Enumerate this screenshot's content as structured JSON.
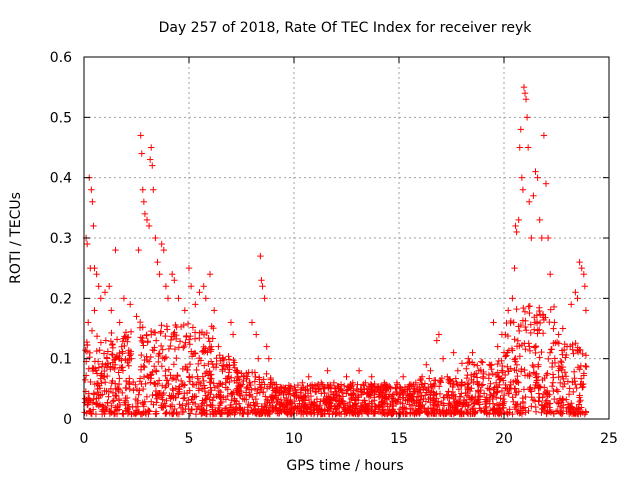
{
  "chart_data": {
    "type": "scatter",
    "title": "Day 257 of 2018, Rate Of TEC Index for receiver reyk",
    "xlabel": "GPS time / hours",
    "ylabel": "ROTI / TECUs",
    "xlim": [
      0,
      25
    ],
    "ylim": [
      0,
      0.6
    ],
    "xticks": [
      "0",
      "5",
      "10",
      "15",
      "20",
      "25"
    ],
    "yticks": [
      "0",
      "0.1",
      "0.2",
      "0.3",
      "0.4",
      "0.5",
      "0.6"
    ],
    "grid": true,
    "marker": "plus",
    "color": "#ff0000",
    "series": [
      {
        "name": "reyk",
        "points": [
          [
            0.1,
            0.3
          ],
          [
            0.15,
            0.29
          ],
          [
            0.25,
            0.4
          ],
          [
            0.35,
            0.38
          ],
          [
            0.4,
            0.36
          ],
          [
            0.45,
            0.32
          ],
          [
            0.3,
            0.25
          ],
          [
            0.5,
            0.25
          ],
          [
            0.6,
            0.24
          ],
          [
            0.7,
            0.22
          ],
          [
            0.2,
            0.16
          ],
          [
            0.5,
            0.18
          ],
          [
            0.8,
            0.2
          ],
          [
            1.0,
            0.21
          ],
          [
            1.2,
            0.22
          ],
          [
            1.5,
            0.28
          ],
          [
            1.3,
            0.18
          ],
          [
            1.7,
            0.16
          ],
          [
            1.9,
            0.2
          ],
          [
            2.2,
            0.19
          ],
          [
            2.5,
            0.17
          ],
          [
            2.6,
            0.28
          ],
          [
            2.7,
            0.47
          ],
          [
            2.75,
            0.44
          ],
          [
            2.8,
            0.38
          ],
          [
            2.85,
            0.36
          ],
          [
            2.9,
            0.34
          ],
          [
            3.0,
            0.33
          ],
          [
            3.1,
            0.32
          ],
          [
            3.15,
            0.43
          ],
          [
            3.2,
            0.45
          ],
          [
            3.25,
            0.42
          ],
          [
            3.3,
            0.38
          ],
          [
            3.4,
            0.3
          ],
          [
            3.5,
            0.26
          ],
          [
            3.6,
            0.24
          ],
          [
            3.7,
            0.29
          ],
          [
            3.8,
            0.28
          ],
          [
            3.9,
            0.22
          ],
          [
            4.0,
            0.2
          ],
          [
            4.2,
            0.24
          ],
          [
            4.3,
            0.23
          ],
          [
            4.5,
            0.2
          ],
          [
            4.8,
            0.18
          ],
          [
            5.0,
            0.25
          ],
          [
            5.1,
            0.22
          ],
          [
            5.3,
            0.19
          ],
          [
            5.5,
            0.21
          ],
          [
            5.7,
            0.22
          ],
          [
            5.8,
            0.2
          ],
          [
            6.0,
            0.24
          ],
          [
            6.2,
            0.18
          ],
          [
            6.4,
            0.12
          ],
          [
            6.6,
            0.1
          ],
          [
            6.8,
            0.09
          ],
          [
            7.0,
            0.16
          ],
          [
            7.1,
            0.14
          ],
          [
            7.3,
            0.08
          ],
          [
            7.6,
            0.07
          ],
          [
            7.9,
            0.06
          ],
          [
            8.0,
            0.16
          ],
          [
            8.2,
            0.14
          ],
          [
            8.3,
            0.1
          ],
          [
            8.4,
            0.27
          ],
          [
            8.45,
            0.23
          ],
          [
            8.5,
            0.22
          ],
          [
            8.6,
            0.2
          ],
          [
            8.7,
            0.12
          ],
          [
            8.8,
            0.1
          ],
          [
            9.0,
            0.06
          ],
          [
            9.2,
            0.05
          ],
          [
            9.5,
            0.04
          ],
          [
            9.8,
            0.05
          ],
          [
            10.1,
            0.04
          ],
          [
            10.4,
            0.06
          ],
          [
            10.7,
            0.07
          ],
          [
            11.0,
            0.05
          ],
          [
            11.3,
            0.06
          ],
          [
            11.6,
            0.08
          ],
          [
            11.9,
            0.06
          ],
          [
            12.2,
            0.05
          ],
          [
            12.5,
            0.07
          ],
          [
            12.8,
            0.06
          ],
          [
            13.1,
            0.08
          ],
          [
            13.4,
            0.06
          ],
          [
            13.7,
            0.07
          ],
          [
            14.0,
            0.05
          ],
          [
            14.3,
            0.06
          ],
          [
            14.6,
            0.05
          ],
          [
            14.9,
            0.06
          ],
          [
            15.2,
            0.07
          ],
          [
            15.5,
            0.05
          ],
          [
            15.8,
            0.06
          ],
          [
            16.1,
            0.07
          ],
          [
            16.3,
            0.09
          ],
          [
            16.5,
            0.08
          ],
          [
            16.8,
            0.13
          ],
          [
            16.9,
            0.14
          ],
          [
            17.1,
            0.1
          ],
          [
            17.3,
            0.07
          ],
          [
            17.6,
            0.11
          ],
          [
            17.8,
            0.08
          ],
          [
            18.0,
            0.06
          ],
          [
            18.3,
            0.1
          ],
          [
            18.5,
            0.11
          ],
          [
            18.8,
            0.08
          ],
          [
            19.0,
            0.07
          ],
          [
            19.3,
            0.09
          ],
          [
            19.5,
            0.16
          ],
          [
            19.7,
            0.12
          ],
          [
            19.9,
            0.14
          ],
          [
            20.0,
            0.11
          ],
          [
            20.2,
            0.18
          ],
          [
            20.4,
            0.2
          ],
          [
            20.5,
            0.25
          ],
          [
            20.55,
            0.32
          ],
          [
            20.6,
            0.31
          ],
          [
            20.7,
            0.33
          ],
          [
            20.75,
            0.45
          ],
          [
            20.8,
            0.48
          ],
          [
            20.85,
            0.4
          ],
          [
            20.9,
            0.38
          ],
          [
            20.95,
            0.55
          ],
          [
            21.0,
            0.54
          ],
          [
            21.05,
            0.53
          ],
          [
            21.1,
            0.5
          ],
          [
            21.15,
            0.45
          ],
          [
            21.2,
            0.36
          ],
          [
            21.3,
            0.3
          ],
          [
            21.4,
            0.37
          ],
          [
            21.5,
            0.41
          ],
          [
            21.6,
            0.4
          ],
          [
            21.7,
            0.33
          ],
          [
            21.8,
            0.3
          ],
          [
            21.9,
            0.47
          ],
          [
            22.0,
            0.39
          ],
          [
            22.1,
            0.3
          ],
          [
            22.2,
            0.24
          ],
          [
            22.4,
            0.16
          ],
          [
            22.6,
            0.14
          ],
          [
            22.8,
            0.15
          ],
          [
            23.0,
            0.12
          ],
          [
            23.2,
            0.19
          ],
          [
            23.4,
            0.21
          ],
          [
            23.5,
            0.2
          ],
          [
            23.6,
            0.26
          ],
          [
            23.7,
            0.25
          ],
          [
            23.8,
            0.24
          ],
          [
            23.85,
            0.22
          ],
          [
            23.9,
            0.18
          ]
        ]
      }
    ]
  }
}
